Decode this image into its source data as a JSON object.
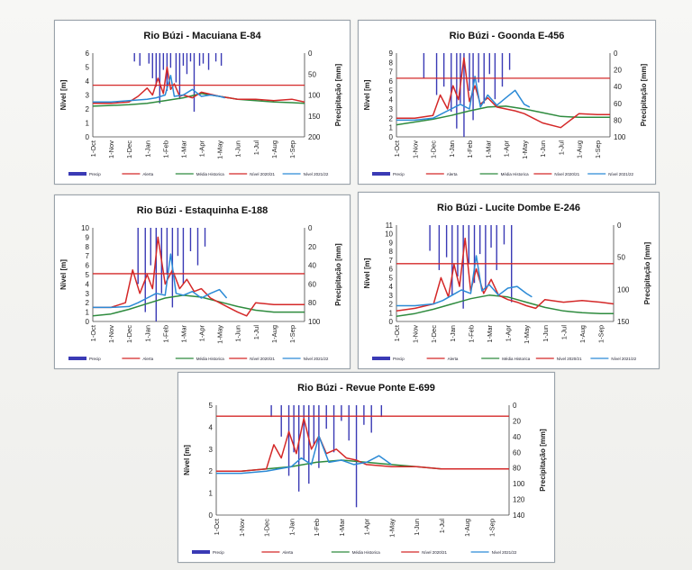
{
  "chart_data": [
    {
      "type": "line",
      "title": "Rio Búzi - Macuiana E-84",
      "ylabel": "Nível [m]",
      "y2label": "Precipitação [mm]",
      "ylim": [
        0,
        6
      ],
      "y2lim": [
        0,
        200
      ],
      "yticks": [
        "0",
        "1",
        "2",
        "3",
        "4",
        "5",
        "6"
      ],
      "y2ticks": [
        "0",
        "50",
        "100",
        "150",
        "200"
      ],
      "categories": [
        "1-Oct",
        "1-Nov",
        "1-Dec",
        "1-Jan",
        "1-Feb",
        "1-Mar",
        "1-Apr",
        "1-May",
        "1-Jun",
        "1-Jul",
        "1-Aug",
        "1-Sep"
      ],
      "alert_level": 3.7,
      "legend": [
        "Precip",
        "Alerta",
        "Média Historica",
        "Nível 2020/21",
        "Nível 2021/22"
      ],
      "series": [
        {
          "name": "Precip",
          "color": "#3a3ab5",
          "axis": "y2",
          "x": [
            2.3,
            2.6,
            3.1,
            3.3,
            3.5,
            3.7,
            3.9,
            4.1,
            4.3,
            4.6,
            4.8,
            5.0,
            5.2,
            5.4,
            5.6,
            5.9,
            6.1,
            6.4,
            6.8,
            7.1
          ],
          "values": [
            20,
            30,
            25,
            60,
            80,
            120,
            40,
            90,
            35,
            70,
            110,
            30,
            50,
            20,
            140,
            30,
            25,
            40,
            20,
            30
          ]
        },
        {
          "name": "Média Historica",
          "color": "#2e8b3e",
          "axis": "y",
          "x": [
            0,
            1,
            2,
            3,
            4,
            5,
            6,
            7,
            8,
            9,
            10,
            11,
            11.7
          ],
          "values": [
            2.2,
            2.25,
            2.3,
            2.4,
            2.6,
            2.8,
            3.1,
            2.9,
            2.7,
            2.6,
            2.5,
            2.45,
            2.4
          ]
        },
        {
          "name": "Nível 2020/21",
          "color": "#d42828",
          "axis": "y",
          "x": [
            0,
            1,
            2,
            2.5,
            3,
            3.3,
            3.6,
            3.9,
            4.1,
            4.3,
            4.5,
            4.8,
            5,
            5.5,
            6,
            7,
            8,
            9,
            10,
            11,
            11.7
          ],
          "values": [
            2.4,
            2.4,
            2.5,
            2.9,
            3.5,
            3.0,
            4.2,
            3.1,
            5.0,
            3.4,
            3.8,
            2.9,
            3.0,
            2.8,
            3.2,
            2.9,
            2.7,
            2.7,
            2.6,
            2.7,
            2.5
          ]
        },
        {
          "name": "Nível 2021/22",
          "color": "#2b8ad6",
          "axis": "y",
          "x": [
            0,
            1,
            2,
            3,
            3.5,
            4,
            4.3,
            4.5,
            5,
            5.5,
            6,
            6.5,
            7,
            7.3
          ],
          "values": [
            2.5,
            2.5,
            2.6,
            2.7,
            2.8,
            3.0,
            4.4,
            2.9,
            3.0,
            3.4,
            2.9,
            3.0,
            2.9,
            2.8
          ]
        }
      ]
    },
    {
      "type": "line",
      "title": "Rio Búzi - Goonda E-456",
      "ylabel": "Nível [m]",
      "y2label": "Precipitação [mm]",
      "ylim": [
        0,
        9
      ],
      "y2lim": [
        0,
        100
      ],
      "yticks": [
        "0",
        "1",
        "2",
        "3",
        "4",
        "5",
        "6",
        "7",
        "8",
        "9"
      ],
      "y2ticks": [
        "0",
        "20",
        "40",
        "60",
        "80",
        "100"
      ],
      "categories": [
        "1-Oct",
        "1-Nov",
        "1-Dec",
        "1-Jan",
        "1-Feb",
        "1-Mar",
        "1-Apr",
        "1-May",
        "1-Jun",
        "1-Jul",
        "1-Aug",
        "1-Sep"
      ],
      "alert_level": 6.3,
      "legend": [
        "Precip",
        "Alerta",
        "Média Historica",
        "Nível 2020/21",
        "Nível 2021/22"
      ],
      "series": [
        {
          "name": "Precip",
          "color": "#3a3ab5",
          "axis": "y2",
          "x": [
            1.5,
            2.2,
            2.6,
            3.0,
            3.3,
            3.5,
            3.7,
            4.0,
            4.2,
            4.5,
            4.8,
            5.1,
            5.4,
            5.8,
            6.2
          ],
          "values": [
            30,
            50,
            40,
            70,
            90,
            60,
            100,
            45,
            80,
            35,
            60,
            25,
            55,
            40,
            20
          ]
        },
        {
          "name": "Média Historica",
          "color": "#2e8b3e",
          "axis": "y",
          "x": [
            0,
            1,
            2,
            3,
            4,
            5,
            6,
            7,
            8,
            9,
            10,
            11,
            11.7
          ],
          "values": [
            1.3,
            1.6,
            1.9,
            2.3,
            2.8,
            3.2,
            3.3,
            3.0,
            2.6,
            2.2,
            2.1,
            2.1,
            2.1
          ]
        },
        {
          "name": "Nível 2020/21",
          "color": "#d42828",
          "axis": "y",
          "x": [
            0,
            1,
            2,
            2.4,
            2.8,
            3.1,
            3.4,
            3.7,
            4.0,
            4.3,
            4.6,
            5,
            5.5,
            6,
            6.5,
            7,
            7.5,
            8,
            9,
            10,
            11,
            11.7
          ],
          "values": [
            2.0,
            2.0,
            2.3,
            4.5,
            3.0,
            5.5,
            4.0,
            8.5,
            3.8,
            5.5,
            3.5,
            4.2,
            3.2,
            3.0,
            2.8,
            2.5,
            2.0,
            1.5,
            1.0,
            2.5,
            2.4,
            2.4
          ]
        },
        {
          "name": "Nível 2021/22",
          "color": "#2b8ad6",
          "axis": "y",
          "x": [
            0,
            1,
            2,
            2.5,
            3,
            3.5,
            4,
            4.3,
            4.6,
            5,
            5.5,
            6,
            6.5,
            7,
            7.3
          ],
          "values": [
            1.8,
            1.8,
            2.0,
            2.5,
            3.0,
            3.5,
            3.0,
            6.5,
            3.2,
            4.5,
            3.4,
            4.2,
            5.0,
            3.5,
            3.2
          ]
        }
      ]
    },
    {
      "type": "line",
      "title": "Rio Búzi - Estaquinha E-188",
      "ylabel": "Nível [m]",
      "y2label": "Precipitação [mm]",
      "ylim": [
        0,
        10
      ],
      "y2lim": [
        0,
        100
      ],
      "yticks": [
        "0",
        "1",
        "2",
        "3",
        "4",
        "5",
        "6",
        "7",
        "8",
        "9",
        "10"
      ],
      "y2ticks": [
        "0",
        "20",
        "40",
        "60",
        "80",
        "100"
      ],
      "categories": [
        "1-Oct",
        "1-Nov",
        "1-Dec",
        "1-Jan",
        "1-Feb",
        "1-Mar",
        "1-Apr",
        "1-May",
        "1-Jun",
        "1-Jul",
        "1-Aug",
        "1-Sep"
      ],
      "alert_level": 5.1,
      "legend": [
        "Precip",
        "Alerta",
        "Média Historica",
        "Nível 2020/21",
        "Nível 2021/22"
      ],
      "series": [
        {
          "name": "Precip",
          "color": "#3a3ab5",
          "axis": "y2",
          "x": [
            2.5,
            2.9,
            3.2,
            3.5,
            3.8,
            4.1,
            4.4,
            4.7,
            5.0,
            5.4,
            5.8,
            6.2
          ],
          "values": [
            60,
            90,
            40,
            100,
            70,
            50,
            85,
            30,
            60,
            25,
            40,
            20
          ]
        },
        {
          "name": "Média Historica",
          "color": "#2e8b3e",
          "axis": "y",
          "x": [
            0,
            1,
            2,
            3,
            4,
            5,
            6,
            7,
            8,
            9,
            10,
            11,
            11.7
          ],
          "values": [
            0.6,
            0.8,
            1.3,
            1.9,
            2.5,
            2.8,
            2.6,
            2.1,
            1.6,
            1.2,
            1.0,
            1.0,
            1.0
          ]
        },
        {
          "name": "Nível 2020/21",
          "color": "#d42828",
          "axis": "y",
          "x": [
            0,
            1,
            1.8,
            2.2,
            2.6,
            3.0,
            3.3,
            3.6,
            4.0,
            4.4,
            4.8,
            5.2,
            5.6,
            6,
            6.5,
            7,
            7.5,
            8,
            8.5,
            9,
            10,
            11,
            11.7
          ],
          "values": [
            1.5,
            1.5,
            2.0,
            5.5,
            3.0,
            5.0,
            3.5,
            9.0,
            4.0,
            5.5,
            3.5,
            4.5,
            3.2,
            3.5,
            2.5,
            2.0,
            1.5,
            1.0,
            0.6,
            2.0,
            1.8,
            1.8,
            1.8
          ]
        },
        {
          "name": "Nível 2021/22",
          "color": "#2b8ad6",
          "axis": "y",
          "x": [
            0,
            1,
            2,
            2.5,
            3,
            3.5,
            4,
            4.3,
            4.6,
            5,
            5.5,
            6,
            6.5,
            7,
            7.4
          ],
          "values": [
            1.5,
            1.5,
            1.6,
            2.0,
            2.5,
            3.0,
            2.8,
            7.2,
            3.0,
            2.8,
            3.2,
            2.5,
            3.0,
            3.4,
            2.5
          ]
        }
      ]
    },
    {
      "type": "line",
      "title": "Rio Búzi - Lucite Dombe E-246",
      "ylabel": "Nível [m]",
      "y2label": "Precipitação [mm]",
      "ylim": [
        0,
        11
      ],
      "y2lim": [
        0,
        150
      ],
      "yticks": [
        "0",
        "1",
        "2",
        "3",
        "4",
        "5",
        "6",
        "7",
        "8",
        "9",
        "10",
        "11"
      ],
      "y2ticks": [
        "0",
        "50",
        "100",
        "150"
      ],
      "categories": [
        "1-Oct",
        "1-Nov",
        "1-Dec",
        "1-Jan",
        "1-Feb",
        "1-Mar",
        "1-Apr",
        "1-May",
        "1-Jun",
        "1-Jul",
        "1-Aug",
        "1-Sep"
      ],
      "alert_level": 6.6,
      "legend": [
        "Precip",
        "Alerta",
        "Média Historica",
        "Nível 2020/21",
        "Nível 2021/22"
      ],
      "series": [
        {
          "name": "Precip",
          "color": "#3a3ab5",
          "axis": "y2",
          "x": [
            1.8,
            2.3,
            2.7,
            3.0,
            3.3,
            3.6,
            3.9,
            4.2,
            4.5,
            4.8,
            5.1,
            5.4,
            5.8,
            6.2
          ],
          "values": [
            40,
            70,
            50,
            110,
            80,
            130,
            60,
            90,
            45,
            100,
            35,
            70,
            30,
            120
          ]
        },
        {
          "name": "Média Historica",
          "color": "#2e8b3e",
          "axis": "y",
          "x": [
            0,
            1,
            2,
            3,
            4,
            5,
            6,
            7,
            8,
            9,
            10,
            11,
            11.7
          ],
          "values": [
            0.6,
            0.9,
            1.4,
            2.0,
            2.6,
            3.0,
            2.8,
            2.2,
            1.6,
            1.2,
            1.0,
            0.9,
            0.9
          ]
        },
        {
          "name": "Nível 2020/21",
          "color": "#d42828",
          "axis": "y",
          "x": [
            0,
            1,
            2,
            2.4,
            2.8,
            3.1,
            3.4,
            3.7,
            4.0,
            4.3,
            4.7,
            5.1,
            5.5,
            6,
            6.5,
            7,
            7.5,
            8,
            9,
            10,
            11,
            11.7
          ],
          "values": [
            1.2,
            1.5,
            2.0,
            5.0,
            2.8,
            6.5,
            4.0,
            9.5,
            3.5,
            6.0,
            3.2,
            4.8,
            3.0,
            2.5,
            2.2,
            1.8,
            1.5,
            2.5,
            2.2,
            2.4,
            2.2,
            2.0
          ]
        },
        {
          "name": "Nível 2021/22",
          "color": "#2b8ad6",
          "axis": "y",
          "x": [
            0,
            1,
            2,
            2.5,
            3,
            3.5,
            4,
            4.3,
            4.6,
            5,
            5.5,
            6,
            6.5,
            7,
            7.3
          ],
          "values": [
            1.8,
            1.8,
            2.0,
            2.4,
            3.0,
            3.6,
            3.2,
            7.5,
            3.5,
            4.2,
            3.0,
            3.8,
            4.0,
            3.2,
            2.8
          ]
        }
      ]
    },
    {
      "type": "line",
      "title": "Rio Búzi - Revue Ponte E-699",
      "ylabel": "Nível [m]",
      "y2label": "Precipitação [mm]",
      "ylim": [
        0,
        5
      ],
      "y2lim": [
        0,
        140
      ],
      "yticks": [
        "0",
        "1",
        "2",
        "3",
        "4",
        "5"
      ],
      "y2ticks": [
        "0",
        "20",
        "40",
        "60",
        "80",
        "100",
        "120",
        "140"
      ],
      "categories": [
        "1-Oct",
        "1-Nov",
        "1-Dec",
        "1-Jan",
        "1-Feb",
        "1-Mar",
        "1-Apr",
        "1-May",
        "1-Jun",
        "1-Jul",
        "1-Aug",
        "1-Sep"
      ],
      "alert_level": 4.5,
      "legend": [
        "Precip",
        "Alerta",
        "Média Historica",
        "Nível 2020/21",
        "Nível 2021/22"
      ],
      "series": [
        {
          "name": "Precip",
          "color": "#3a3ab5",
          "axis": "y2",
          "x": [
            2.2,
            2.6,
            2.9,
            3.1,
            3.3,
            3.5,
            3.7,
            3.9,
            4.1,
            4.4,
            4.7,
            5.0,
            5.3,
            5.6,
            5.9,
            6.2,
            6.6
          ],
          "values": [
            15,
            40,
            90,
            60,
            110,
            70,
            100,
            50,
            80,
            30,
            60,
            20,
            45,
            130,
            25,
            35,
            15
          ]
        },
        {
          "name": "Média Historica",
          "color": "#2e8b3e",
          "axis": "y",
          "x": [
            0,
            1,
            2,
            3,
            4,
            5,
            6,
            7,
            8,
            9,
            10,
            11,
            11.7
          ],
          "values": [
            2.0,
            2.0,
            2.1,
            2.2,
            2.4,
            2.5,
            2.4,
            2.3,
            2.2,
            2.1,
            2.1,
            2.1,
            2.1
          ]
        },
        {
          "name": "Nível 2020/21",
          "color": "#d42828",
          "axis": "y",
          "x": [
            0,
            1,
            2,
            2.3,
            2.6,
            2.9,
            3.2,
            3.5,
            3.8,
            4.1,
            4.4,
            4.8,
            5.2,
            5.6,
            6,
            7,
            8,
            9,
            10,
            11,
            11.7
          ],
          "values": [
            2.0,
            2.0,
            2.1,
            3.2,
            2.6,
            3.8,
            2.8,
            4.4,
            3.0,
            3.6,
            2.8,
            3.0,
            2.6,
            2.5,
            2.3,
            2.2,
            2.2,
            2.1,
            2.1,
            2.1,
            2.1
          ]
        },
        {
          "name": "Nível 2021/22",
          "color": "#2b8ad6",
          "axis": "y",
          "x": [
            0,
            1,
            2,
            2.5,
            3,
            3.4,
            3.8,
            4.1,
            4.5,
            5,
            5.5,
            6,
            6.5,
            7
          ],
          "values": [
            1.9,
            1.9,
            2.0,
            2.1,
            2.2,
            2.6,
            2.3,
            3.6,
            2.4,
            2.5,
            2.3,
            2.4,
            2.7,
            2.3
          ]
        }
      ]
    }
  ]
}
